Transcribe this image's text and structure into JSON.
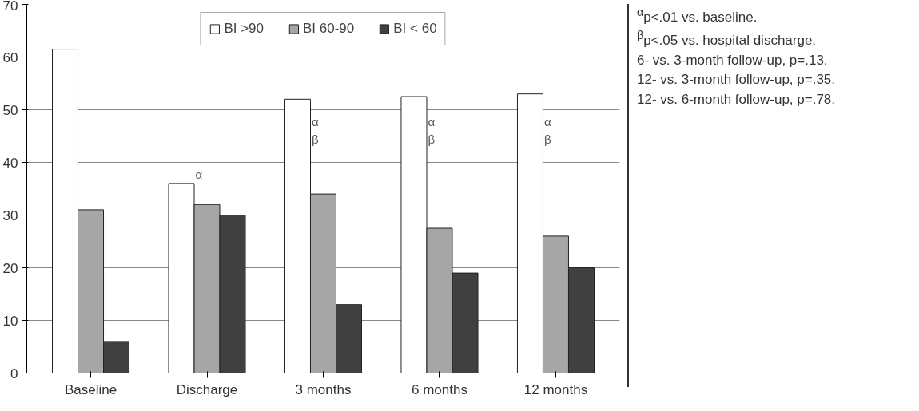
{
  "chart_data": {
    "type": "bar",
    "categories": [
      "Baseline",
      "Discharge",
      "3 months",
      "6 months",
      "12 months"
    ],
    "series": [
      {
        "name": "BI >90",
        "color": "#ffffff",
        "values": [
          61.5,
          36,
          52,
          52.5,
          53
        ]
      },
      {
        "name": "BI 60-90",
        "color": "#a6a6a6",
        "values": [
          31,
          32,
          34,
          27.5,
          26
        ]
      },
      {
        "name": "BI < 60",
        "color": "#404040",
        "values": [
          6,
          30,
          13,
          19,
          20
        ]
      }
    ],
    "ylim": [
      0,
      70
    ],
    "yticks": [
      0,
      10,
      20,
      30,
      40,
      50,
      60,
      70
    ],
    "grid": "y",
    "legend": "top",
    "annotations": [
      "α",
      "α\nβ",
      "α\nβ",
      "α\nβ",
      "$^{α}$p<.01 vs. baseline.",
      "$^{β}$p<.05 vs. hospital discharge.",
      "6- vs. 3-month follow-up, p=.13.",
      "12- vs. 3-month follow-up, p=.35.",
      "12- vs. 6-month follow-up, p=.78."
    ]
  }
}
